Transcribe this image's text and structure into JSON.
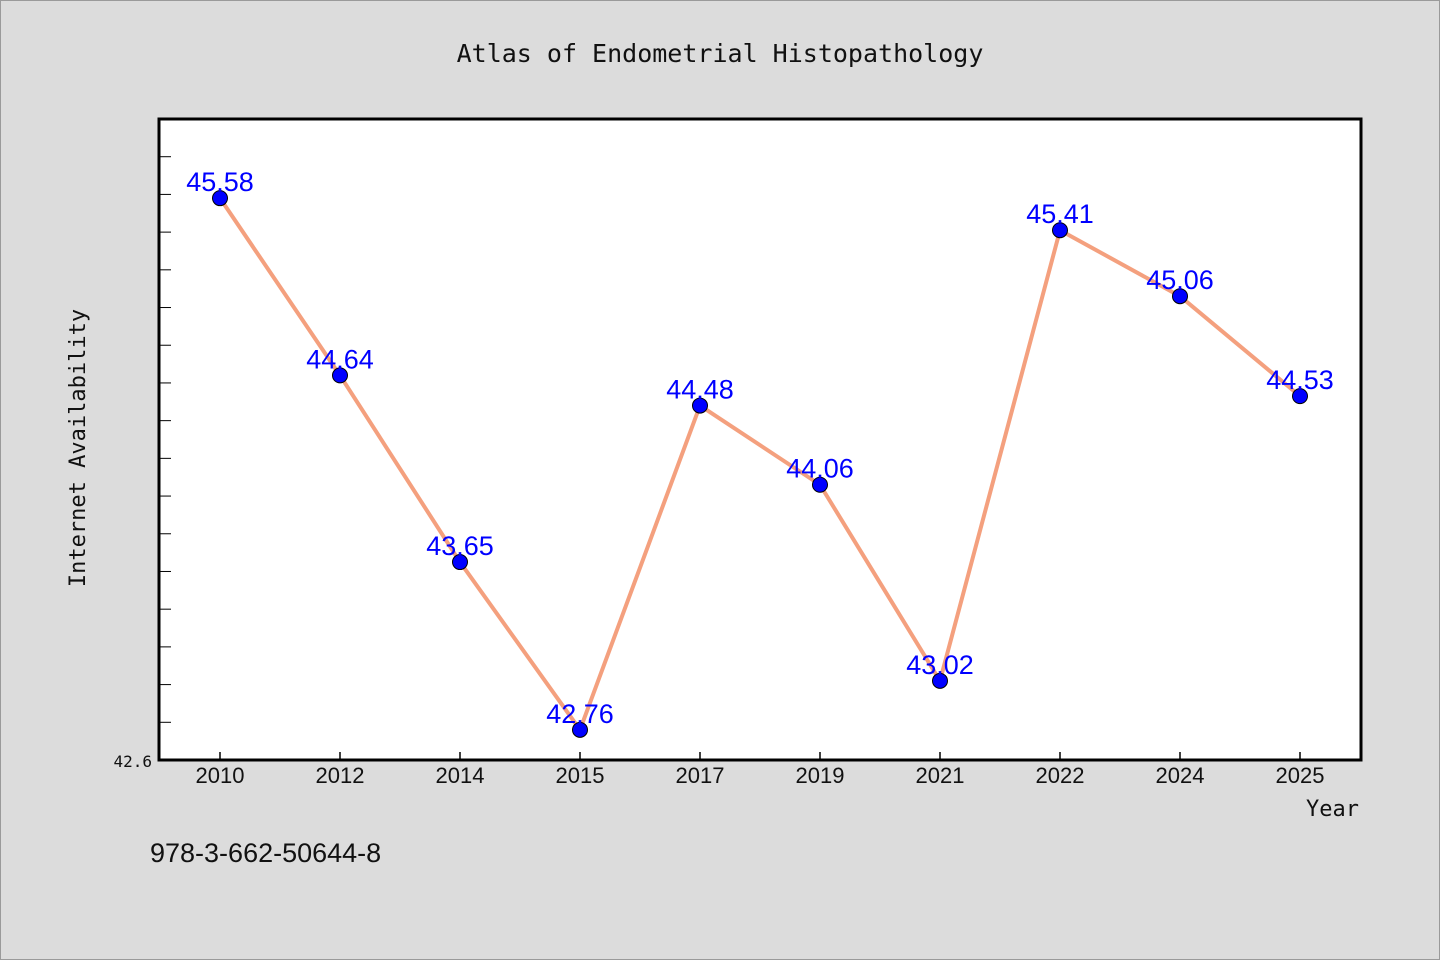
{
  "chart_data": {
    "type": "line",
    "title": "Atlas of Endometrial Histopathology",
    "xlabel": "Year",
    "ylabel": "Internet Availability",
    "categories": [
      "2010",
      "2012",
      "2014",
      "2015",
      "2017",
      "2019",
      "2021",
      "2022",
      "2024",
      "2025"
    ],
    "values": [
      45.58,
      44.64,
      43.65,
      42.76,
      44.48,
      44.06,
      43.02,
      45.41,
      45.06,
      44.53
    ],
    "data_labels": [
      "45.58",
      "44.64",
      "43.65",
      "42.76",
      "44.48",
      "44.06",
      "43.02",
      "45.41",
      "45.06",
      "44.53"
    ],
    "ylim": [
      42.6,
      46.0
    ],
    "ytick_labels": [
      "42.6"
    ],
    "grid": false,
    "legend": "none",
    "line_color": "#f4a07e",
    "marker_color": "#0000ff",
    "label_color": "#0000ff",
    "plot_background": "#ffffff",
    "page_background": "#dcdcdc"
  },
  "footer": {
    "isbn": "978-3-662-50644-8"
  }
}
